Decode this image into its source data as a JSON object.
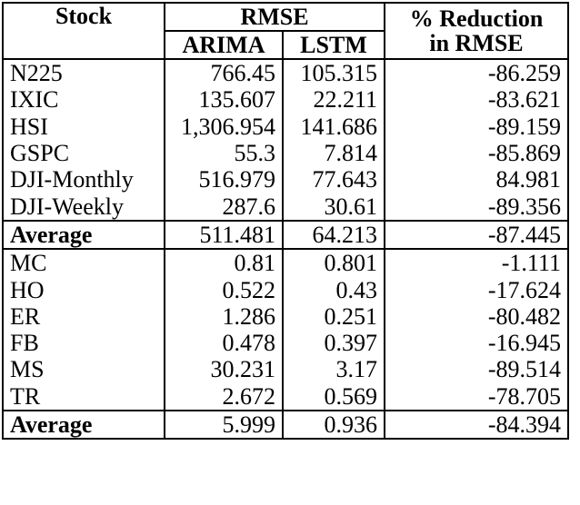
{
  "table": {
    "header": {
      "stock": "Stock",
      "rmse": "RMSE",
      "arima": "ARIMA",
      "lstm": "LSTM",
      "reduction_line1": "% Reduction",
      "reduction_line2": "in RMSE"
    },
    "group1": [
      {
        "stock": "N225",
        "arima": "766.45",
        "lstm": "105.315",
        "reduction": "-86.259"
      },
      {
        "stock": "IXIC",
        "arima": "135.607",
        "lstm": "22.211",
        "reduction": "-83.621"
      },
      {
        "stock": "HSI",
        "arima": "1,306.954",
        "lstm": "141.686",
        "reduction": "-89.159"
      },
      {
        "stock": "GSPC",
        "arima": "55.3",
        "lstm": "7.814",
        "reduction": "-85.869"
      },
      {
        "stock": "DJI-Monthly",
        "arima": "516.979",
        "lstm": "77.643",
        "reduction": "84.981"
      },
      {
        "stock": "DJI-Weekly",
        "arima": "287.6",
        "lstm": "30.61",
        "reduction": "-89.356"
      }
    ],
    "average1": {
      "stock": "Average",
      "arima": "511.481",
      "lstm": "64.213",
      "reduction": "-87.445"
    },
    "group2": [
      {
        "stock": "MC",
        "arima": "0.81",
        "lstm": "0.801",
        "reduction": "-1.111"
      },
      {
        "stock": "HO",
        "arima": "0.522",
        "lstm": "0.43",
        "reduction": "-17.624"
      },
      {
        "stock": "ER",
        "arima": "1.286",
        "lstm": "0.251",
        "reduction": "-80.482"
      },
      {
        "stock": "FB",
        "arima": "0.478",
        "lstm": "0.397",
        "reduction": "-16.945"
      },
      {
        "stock": "MS",
        "arima": "30.231",
        "lstm": "3.17",
        "reduction": "-89.514"
      },
      {
        "stock": "TR",
        "arima": "2.672",
        "lstm": "0.569",
        "reduction": "-78.705"
      }
    ],
    "average2": {
      "stock": "Average",
      "arima": "5.999",
      "lstm": "0.936",
      "reduction": "-84.394"
    }
  }
}
